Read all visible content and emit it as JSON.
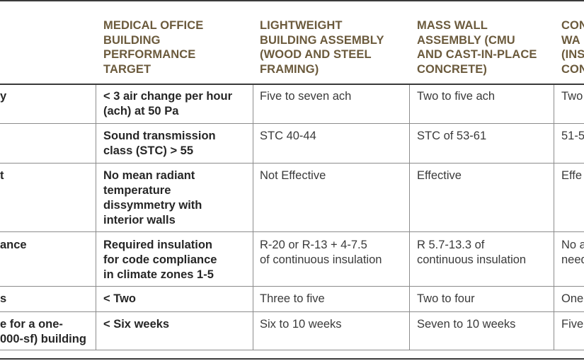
{
  "headers": {
    "col1": [
      "MEDICAL OFFICE",
      "BUILDING",
      "PERFORMANCE",
      "TARGET"
    ],
    "col2": [
      "LIGHTWEIGHT",
      "BUILDING ASSEMBLY",
      "(WOOD AND STEEL",
      "FRAMING)"
    ],
    "col3": [
      "MASS WALL",
      "ASSEMBLY (CMU",
      "AND CAST-IN-PLACE",
      "CONCRETE)"
    ],
    "col4": [
      "CON",
      "WA",
      "(INS",
      "CON"
    ]
  },
  "rows": [
    {
      "label": [
        "y"
      ],
      "target": [
        "< 3 air change per hour",
        "(ach) at 50 Pa"
      ],
      "lightweight": [
        "Five to seven ach"
      ],
      "mass": [
        "Two to five ach"
      ],
      "col4": [
        "Two"
      ]
    },
    {
      "label": [],
      "target": [
        "Sound transmission",
        "class (STC) > 55"
      ],
      "lightweight": [
        "STC 40-44"
      ],
      "mass": [
        "STC of 53-61"
      ],
      "col4": [
        "51-5"
      ]
    },
    {
      "label": [
        "t"
      ],
      "target": [
        "No mean radiant",
        "temperature",
        "dissymmetry with",
        "interior walls"
      ],
      "lightweight": [
        "Not Effective"
      ],
      "mass": [
        "Effective"
      ],
      "col4": [
        "Effe"
      ]
    },
    {
      "label": [
        "ance"
      ],
      "target": [
        "Required insulation",
        "for code compliance",
        "in climate zones 1-5"
      ],
      "lightweight": [
        "R-20 or R-13 + 4-7.5",
        "of continuous insulation"
      ],
      "mass": [
        "R 5.7-13.3 of",
        "continuous insulation"
      ],
      "col4": [
        "No a",
        "need"
      ]
    },
    {
      "label": [
        "s"
      ],
      "target": [
        "< Two"
      ],
      "lightweight": [
        "Three to five"
      ],
      "mass": [
        "Two to four"
      ],
      "col4": [
        "One"
      ]
    },
    {
      "label": [
        "e for a one-",
        "000-sf) building"
      ],
      "target": [
        "< Six weeks"
      ],
      "lightweight": [
        "Six to 10 weeks"
      ],
      "mass": [
        "Seven to 10 weeks"
      ],
      "col4": [
        "Five"
      ]
    }
  ]
}
